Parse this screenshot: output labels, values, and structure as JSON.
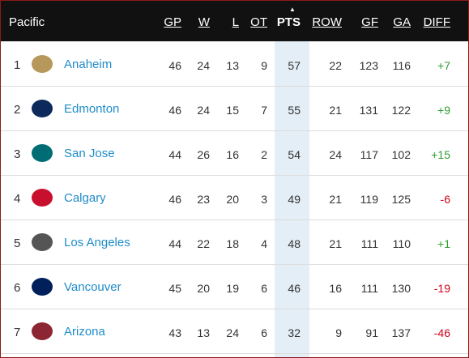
{
  "table": {
    "division": "Pacific",
    "columns": [
      "GP",
      "W",
      "L",
      "OT",
      "PTS",
      "ROW",
      "GF",
      "GA",
      "DIFF"
    ],
    "rows": [
      [
        "1",
        "Anaheim",
        "46",
        "24",
        "13",
        "9",
        "57",
        "22",
        "123",
        "116",
        "+7"
      ],
      [
        "2",
        "Edmonton",
        "46",
        "24",
        "15",
        "7",
        "55",
        "21",
        "131",
        "122",
        "+9"
      ],
      [
        "3",
        "San Jose",
        "44",
        "26",
        "16",
        "2",
        "54",
        "24",
        "117",
        "102",
        "+15"
      ],
      [
        "4",
        "Calgary",
        "46",
        "23",
        "20",
        "3",
        "49",
        "21",
        "119",
        "125",
        "-6"
      ],
      [
        "5",
        "Los Angeles",
        "44",
        "22",
        "18",
        "4",
        "48",
        "21",
        "111",
        "110",
        "+1"
      ],
      [
        "6",
        "Vancouver",
        "45",
        "20",
        "19",
        "6",
        "46",
        "16",
        "111",
        "130",
        "-19"
      ],
      [
        "7",
        "Arizona",
        "43",
        "13",
        "24",
        "6",
        "32",
        "9",
        "91",
        "137",
        "-46"
      ]
    ]
  }
}
